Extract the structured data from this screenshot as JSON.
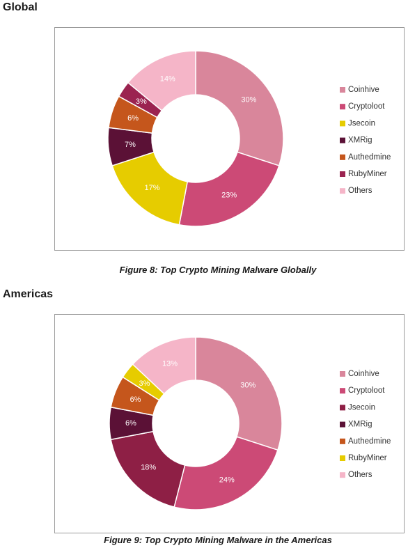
{
  "sections": {
    "global_title": "Global",
    "americas_title": "Americas"
  },
  "captions": {
    "global": "Figure 8: Top Crypto Mining Malware Globally",
    "americas": "Figure 9: Top Crypto Mining Malware in the Americas"
  },
  "chart_data": [
    {
      "type": "pie",
      "donut": true,
      "legend": "right",
      "categories": [
        "Coinhive",
        "Cryptoloot",
        "Jsecoin",
        "XMRig",
        "Authedmine",
        "RubyMiner",
        "Others"
      ],
      "values": [
        30,
        23,
        17,
        7,
        6,
        3,
        14
      ],
      "labels": [
        "30%",
        "23%",
        "17%",
        "7%",
        "6%",
        "3%",
        "14%"
      ],
      "colors": [
        "#d9869b",
        "#cc4a76",
        "#e6cc00",
        "#5b1136",
        "#c5561c",
        "#9b2350",
        "#f5b5c8"
      ],
      "label_colors": [
        "#ffffff",
        "#ffffff",
        "#ffffff",
        "#ffffff",
        "#ffffff",
        "#ffffff",
        "#ffffff"
      ]
    },
    {
      "type": "pie",
      "donut": true,
      "legend": "right",
      "categories": [
        "Coinhive",
        "Cryptoloot",
        "Jsecoin",
        "XMRig",
        "Authedmine",
        "RubyMiner",
        "Others"
      ],
      "values": [
        30,
        24,
        18,
        6,
        6,
        3,
        13
      ],
      "labels": [
        "30%",
        "24%",
        "18%",
        "6%",
        "6%",
        "3%",
        "13%"
      ],
      "colors": [
        "#d9869b",
        "#cc4a76",
        "#8e1f45",
        "#5b1136",
        "#c5561c",
        "#e6cc00",
        "#f5b5c8"
      ],
      "label_colors": [
        "#ffffff",
        "#ffffff",
        "#ffffff",
        "#ffffff",
        "#ffffff",
        "#ffffff",
        "#ffffff"
      ]
    }
  ]
}
